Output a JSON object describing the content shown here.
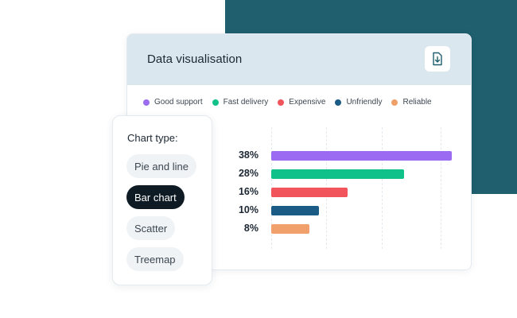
{
  "card": {
    "title": "Data visualisation",
    "download_icon": "file-download-icon"
  },
  "legend": [
    {
      "label": "Good support",
      "color": "#9b6cf2"
    },
    {
      "label": "Fast delivery",
      "color": "#10c28a"
    },
    {
      "label": "Expensive",
      "color": "#f2545b"
    },
    {
      "label": "Unfriendly",
      "color": "#1b5c87"
    },
    {
      "label": "Reliable",
      "color": "#f2a06b"
    }
  ],
  "chart_data": {
    "type": "bar",
    "orientation": "horizontal",
    "categories": [
      "Good support",
      "Fast delivery",
      "Expensive",
      "Unfriendly",
      "Reliable"
    ],
    "values": [
      38,
      28,
      16,
      10,
      8
    ],
    "value_labels": [
      "38%",
      "28%",
      "16%",
      "10%",
      "8%"
    ],
    "colors": [
      "#9b6cf2",
      "#10c28a",
      "#f2545b",
      "#1b5c87",
      "#f2a06b"
    ],
    "xlim": [
      0,
      38
    ],
    "grid": true,
    "legend_position": "top"
  },
  "chart_type_panel": {
    "title": "Chart type:",
    "options": [
      "Pie and line",
      "Bar chart",
      "Scatter",
      "Treemap"
    ],
    "selected": "Bar chart"
  }
}
